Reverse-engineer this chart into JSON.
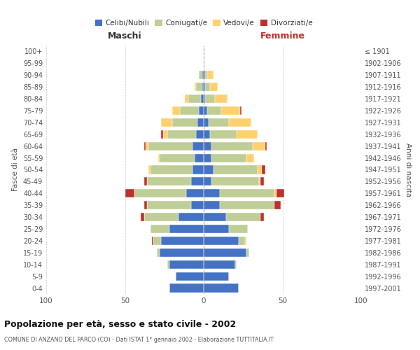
{
  "age_groups": [
    "0-4",
    "5-9",
    "10-14",
    "15-19",
    "20-24",
    "25-29",
    "30-34",
    "35-39",
    "40-44",
    "45-49",
    "50-54",
    "55-59",
    "60-64",
    "65-69",
    "70-74",
    "75-79",
    "80-84",
    "85-89",
    "90-94",
    "95-99",
    "100+"
  ],
  "birth_years": [
    "1997-2001",
    "1992-1996",
    "1987-1991",
    "1982-1986",
    "1977-1981",
    "1972-1976",
    "1967-1971",
    "1962-1966",
    "1957-1961",
    "1952-1956",
    "1947-1951",
    "1942-1946",
    "1937-1941",
    "1932-1936",
    "1927-1931",
    "1922-1926",
    "1917-1921",
    "1912-1916",
    "1907-1911",
    "1902-1906",
    "≤ 1901"
  ],
  "maschi": {
    "celibi": [
      22,
      18,
      22,
      28,
      27,
      22,
      16,
      8,
      11,
      8,
      7,
      6,
      7,
      5,
      4,
      3,
      2,
      1,
      1,
      0,
      0
    ],
    "coniugati": [
      0,
      0,
      1,
      2,
      5,
      12,
      22,
      28,
      33,
      28,
      27,
      22,
      28,
      18,
      16,
      12,
      8,
      4,
      2,
      0,
      0
    ],
    "vedovi": [
      0,
      0,
      0,
      0,
      0,
      0,
      0,
      0,
      0,
      0,
      1,
      1,
      2,
      3,
      7,
      5,
      2,
      1,
      0,
      0,
      0
    ],
    "divorziati": [
      0,
      0,
      0,
      0,
      1,
      0,
      2,
      2,
      6,
      2,
      0,
      0,
      1,
      1,
      0,
      0,
      0,
      0,
      0,
      0,
      0
    ]
  },
  "femmine": {
    "nubili": [
      22,
      16,
      20,
      27,
      22,
      16,
      14,
      10,
      10,
      5,
      6,
      5,
      5,
      4,
      3,
      2,
      1,
      1,
      1,
      0,
      0
    ],
    "coniugate": [
      0,
      0,
      1,
      2,
      4,
      12,
      22,
      35,
      35,
      30,
      28,
      22,
      26,
      17,
      13,
      9,
      6,
      3,
      1,
      0,
      0
    ],
    "vedove": [
      0,
      0,
      0,
      0,
      1,
      0,
      0,
      0,
      1,
      1,
      3,
      5,
      8,
      13,
      14,
      12,
      8,
      5,
      4,
      0,
      0
    ],
    "divorziate": [
      0,
      0,
      0,
      0,
      0,
      0,
      2,
      4,
      5,
      2,
      2,
      0,
      1,
      0,
      0,
      1,
      0,
      0,
      0,
      0,
      0
    ]
  },
  "colors": {
    "celibi_nubili": "#4472C4",
    "coniugati": "#BFCD96",
    "vedovi": "#FFD06F",
    "divorziati": "#C0302A"
  },
  "title": "Popolazione per età, sesso e stato civile - 2002",
  "subtitle": "COMUNE DI ANZANO DEL PARCO (CO) - Dati ISTAT 1° gennaio 2002 - Elaborazione TUTTITALIA.IT",
  "ylabel": "Fasce di età",
  "ylabel_right": "Anni di nascita",
  "xlabel_left": "Maschi",
  "xlabel_right": "Femmine",
  "xmax": 100,
  "background_color": "#ffffff",
  "grid_color": "#cccccc"
}
